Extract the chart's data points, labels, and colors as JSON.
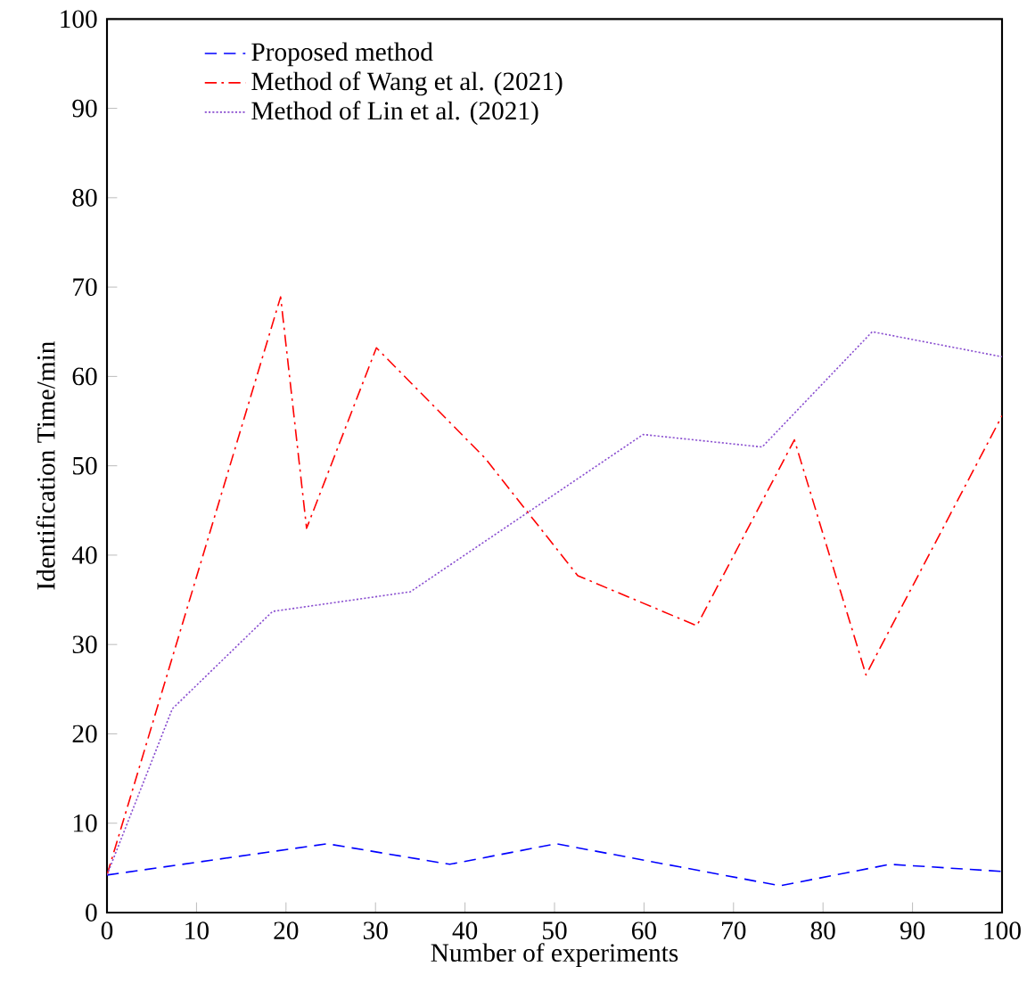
{
  "chart_data": {
    "type": "line",
    "xlabel": "Number of experiments",
    "ylabel": "Identification Time/min",
    "xlim": [
      0,
      100
    ],
    "ylim": [
      0,
      100
    ],
    "xticks": [
      0,
      10,
      20,
      30,
      40,
      50,
      60,
      70,
      80,
      90,
      100
    ],
    "yticks": [
      0,
      10,
      20,
      30,
      40,
      50,
      60,
      70,
      80,
      90,
      100
    ],
    "grid": false,
    "legend": "top left",
    "marker": "none",
    "series": [
      {
        "name": "Proposed method",
        "color": "#0000ff",
        "line_style": "dashed",
        "x": [
          0,
          24.6,
          38.3,
          50.2,
          75.2,
          87.5,
          100
        ],
        "values": [
          4.2,
          7.7,
          5.4,
          7.7,
          3.0,
          5.4,
          4.6
        ]
      },
      {
        "name": "Method of Wang et al. (2021)",
        "color": "#ff0000",
        "line_style": "dashdot",
        "x": [
          0,
          19.4,
          22.3,
          30.1,
          42.2,
          52.6,
          65.9,
          76.8,
          84.8,
          100
        ],
        "values": [
          4.2,
          68.9,
          43,
          63.2,
          50.9,
          37.7,
          32.1,
          52.9,
          26.6,
          55.6
        ]
      },
      {
        "name": "Method of Lin et al. (2021)",
        "color": "#8a4fd0",
        "line_style": "dotted",
        "x": [
          0,
          7.3,
          18.5,
          33.9,
          59.9,
          73.2,
          85.5,
          100
        ],
        "values": [
          4.2,
          22.8,
          33.7,
          35.9,
          53.5,
          52.1,
          65,
          62.2
        ]
      }
    ]
  }
}
